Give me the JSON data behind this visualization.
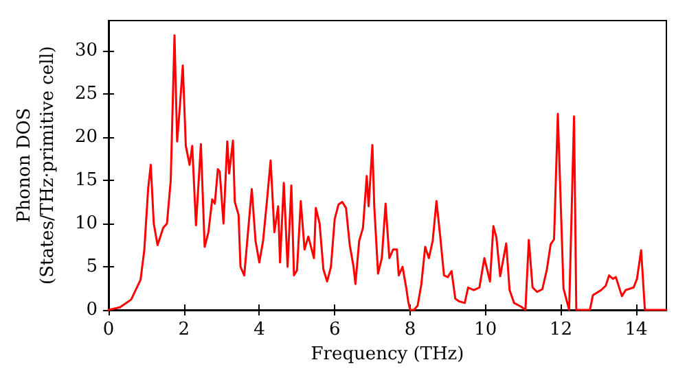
{
  "chart_data": {
    "type": "line",
    "xlabel": "Frequency (THz)",
    "ylabel": "Phonon DOS\n(States/THz·primitive cell)",
    "xlim": [
      0,
      14.8
    ],
    "ylim": [
      0,
      33.5
    ],
    "xticks": [
      0,
      2,
      4,
      6,
      8,
      10,
      12,
      14
    ],
    "yticks": [
      0,
      5,
      10,
      15,
      20,
      25,
      30
    ],
    "grid": false,
    "marker": "none",
    "line_style": "solid",
    "x": [
      0,
      0.3,
      0.6,
      0.85,
      0.95,
      1.05,
      1.12,
      1.2,
      1.3,
      1.45,
      1.55,
      1.65,
      1.75,
      1.82,
      1.9,
      1.97,
      2.05,
      2.15,
      2.22,
      2.32,
      2.45,
      2.55,
      2.65,
      2.75,
      2.82,
      2.9,
      2.95,
      3.05,
      3.15,
      3.2,
      3.3,
      3.35,
      3.45,
      3.5,
      3.6,
      3.7,
      3.8,
      3.9,
      4.0,
      4.1,
      4.2,
      4.3,
      4.4,
      4.5,
      4.55,
      4.65,
      4.75,
      4.85,
      4.92,
      5.0,
      5.1,
      5.2,
      5.3,
      5.45,
      5.5,
      5.6,
      5.7,
      5.8,
      5.9,
      6.0,
      6.1,
      6.2,
      6.3,
      6.4,
      6.5,
      6.55,
      6.65,
      6.75,
      6.85,
      6.9,
      7.0,
      7.05,
      7.15,
      7.25,
      7.35,
      7.45,
      7.55,
      7.65,
      7.7,
      7.8,
      7.9,
      7.95,
      8.0,
      8.1,
      8.2,
      8.3,
      8.4,
      8.5,
      8.6,
      8.7,
      8.8,
      8.9,
      9.0,
      9.1,
      9.2,
      9.3,
      9.45,
      9.54,
      9.69,
      9.84,
      9.97,
      10.12,
      10.21,
      10.29,
      10.39,
      10.55,
      10.64,
      10.76,
      10.94,
      11.06,
      11.15,
      11.25,
      11.37,
      11.51,
      11.63,
      11.73,
      11.82,
      11.92,
      12.07,
      12.22,
      12.35,
      12.41,
      12.77,
      12.85,
      13.07,
      13.19,
      13.28,
      13.38,
      13.46,
      13.62,
      13.72,
      13.93,
      14.02,
      14.13,
      14.23,
      14.8
    ],
    "series": [
      {
        "color": "#ff0000",
        "values": [
          0,
          0.3,
          1.2,
          3.5,
          7,
          14,
          16.8,
          10,
          7.5,
          9.5,
          10,
          15,
          31.8,
          19.5,
          24,
          28.3,
          19,
          16.8,
          19,
          9.8,
          19.2,
          7.3,
          9,
          12.8,
          12.3,
          16.3,
          16,
          10,
          19.5,
          15.8,
          19.6,
          12.5,
          11,
          5,
          4,
          9,
          14,
          8,
          5.5,
          8,
          12.5,
          17.3,
          9,
          12,
          5.5,
          14.7,
          5,
          14.4,
          4,
          4.6,
          12.6,
          7,
          8.5,
          6,
          11.8,
          10,
          4.7,
          3.3,
          5,
          10.5,
          12.2,
          12.5,
          11.8,
          7.5,
          5,
          3,
          8,
          9.5,
          15.5,
          12,
          19.1,
          12,
          4.2,
          6,
          12.3,
          6,
          7,
          7,
          4,
          5,
          2.5,
          1,
          0,
          0,
          0.5,
          3,
          7.3,
          6,
          8,
          12.6,
          8.5,
          4,
          3.8,
          4.5,
          1.3,
          1,
          0.8,
          2.6,
          2.3,
          2.6,
          6,
          3.3,
          9.7,
          8.4,
          3.9,
          7.7,
          2.3,
          0.8,
          0.4,
          0,
          8.1,
          2.6,
          2.1,
          2.4,
          4.7,
          7.6,
          8.2,
          22.7,
          2.5,
          0,
          22.4,
          0,
          0,
          1.7,
          2.3,
          2.8,
          4,
          3.6,
          3.8,
          1.6,
          2.3,
          2.6,
          3.6,
          6.9,
          0,
          0
        ]
      }
    ]
  }
}
